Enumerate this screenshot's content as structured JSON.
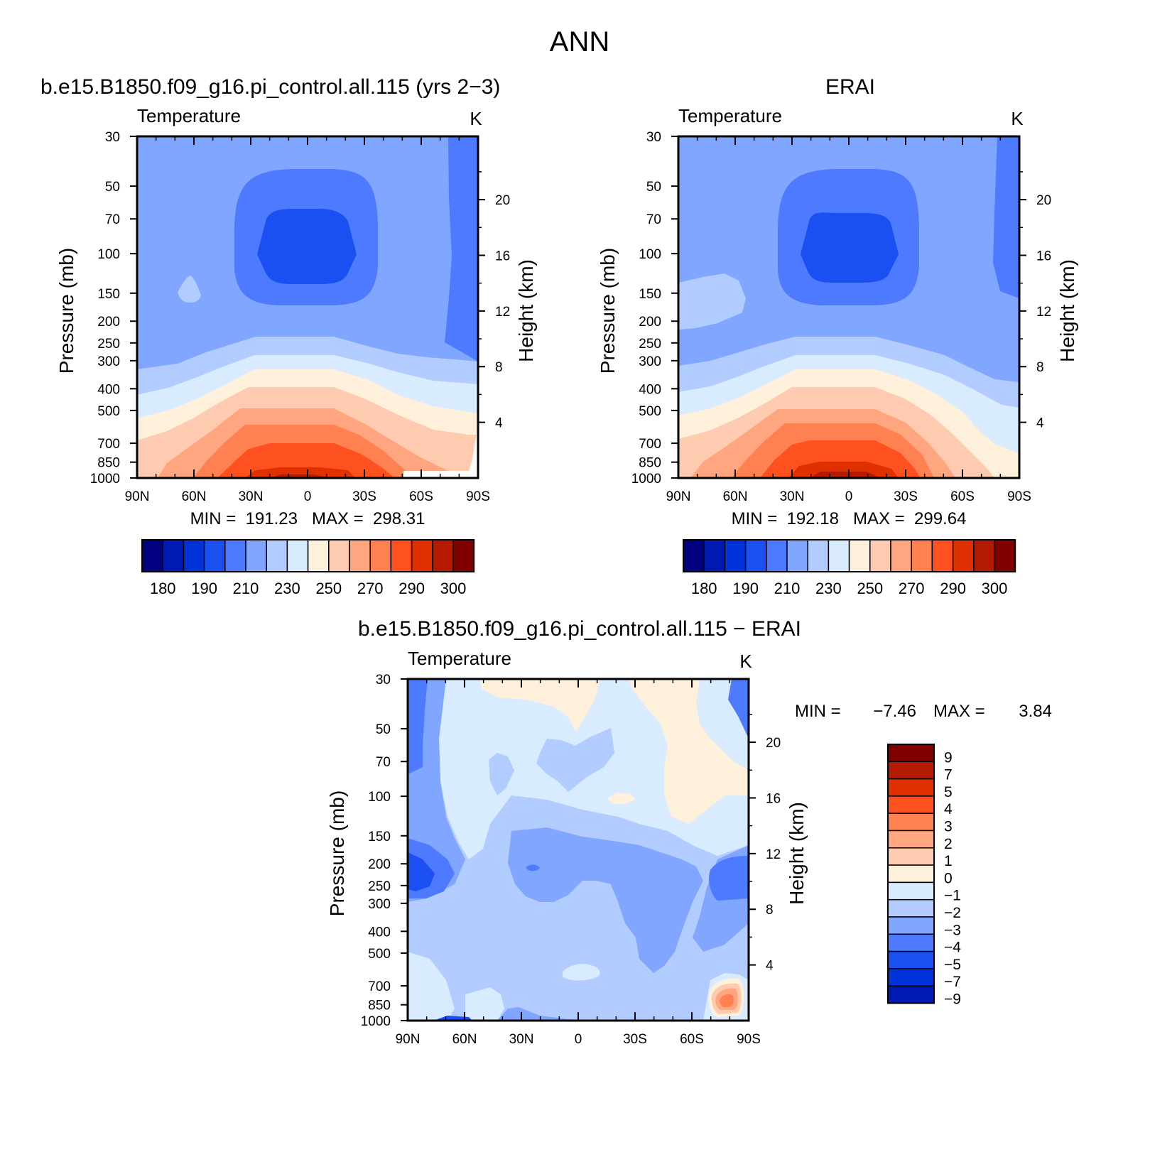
{
  "page_title": "ANN",
  "palette": {
    "abs": [
      "#000080",
      "#0019b3",
      "#0033d9",
      "#1a4ff2",
      "#4d7aff",
      "#80a6ff",
      "#b3ccff",
      "#d9ebff",
      "#fff0dc",
      "#ffcbb0",
      "#ffa680",
      "#ff8050",
      "#ff5020",
      "#e03000",
      "#b31a00",
      "#800000"
    ],
    "diff": [
      "#0019b3",
      "#0033d9",
      "#1a4ff2",
      "#4d7aff",
      "#80a6ff",
      "#b3ccff",
      "#d9ebff",
      "#fff0dc",
      "#ffcbb0",
      "#ffa680",
      "#ff8050",
      "#ff5020",
      "#e03000",
      "#b31a00",
      "#800000"
    ]
  },
  "panels": {
    "model": {
      "header": "b.e15.B1850.f09_g16.pi_control.all.115 (yrs 2−3)",
      "variable": "Temperature",
      "units": "K",
      "minmax": "MIN =  191.23   MAX =  298.31"
    },
    "obs": {
      "header": "ERAI",
      "variable": "Temperature",
      "units": "K",
      "minmax": "MIN =  192.18   MAX =  299.64"
    },
    "diff": {
      "header": "b.e15.B1850.f09_g16.pi_control.all.115 − ERAI",
      "variable": "Temperature",
      "units": "K",
      "min_label": "MIN =",
      "min_value": "−7.46",
      "max_label": "MAX =",
      "max_value": "3.84"
    }
  },
  "axes": {
    "ylabel": "Pressure (mb)",
    "y2label": "Height (km)",
    "pressure_ticks": [
      "30",
      "50",
      "70",
      "100",
      "150",
      "200",
      "250",
      "300",
      "400",
      "500",
      "700",
      "850",
      "1000"
    ],
    "height_ticks": [
      "20",
      "16",
      "12",
      "8",
      "4"
    ],
    "lat_ticks": [
      "90N",
      "60N",
      "30N",
      "0",
      "30S",
      "60S",
      "90S"
    ]
  },
  "colorbars": {
    "abs_labels": [
      "180",
      "190",
      "210",
      "230",
      "250",
      "270",
      "290",
      "300"
    ],
    "diff_labels": [
      "9",
      "7",
      "5",
      "4",
      "3",
      "2",
      "1",
      "0",
      "−1",
      "−2",
      "−3",
      "−4",
      "−5",
      "−7",
      "−9"
    ]
  },
  "chart_data": [
    {
      "type": "heatmap",
      "title": "b.e15.B1850.f09_g16.pi_control.all.115 (yrs 2−3)",
      "variable": "Temperature",
      "units": "K",
      "xlabel": "",
      "ylabel": "Pressure (mb)",
      "y2label": "Height (km)",
      "x_range": [
        -90,
        90
      ],
      "y_range_mb": [
        1000,
        30
      ],
      "y_scale": "log",
      "x_ticks": [
        "90N",
        "60N",
        "30N",
        "0",
        "30S",
        "60S",
        "90S"
      ],
      "y_ticks": [
        30,
        50,
        70,
        100,
        150,
        200,
        250,
        300,
        400,
        500,
        700,
        850,
        1000
      ],
      "contour_levels": [
        175,
        180,
        185,
        190,
        200,
        210,
        220,
        230,
        240,
        250,
        260,
        270,
        280,
        290,
        295,
        300
      ],
      "min": 191.23,
      "max": 298.31
    },
    {
      "type": "heatmap",
      "title": "ERAI",
      "variable": "Temperature",
      "units": "K",
      "xlabel": "",
      "ylabel": "Pressure (mb)",
      "y2label": "Height (km)",
      "x_range": [
        -90,
        90
      ],
      "y_range_mb": [
        1000,
        30
      ],
      "y_scale": "log",
      "x_ticks": [
        "90N",
        "60N",
        "30N",
        "0",
        "30S",
        "60S",
        "90S"
      ],
      "y_ticks": [
        30,
        50,
        70,
        100,
        150,
        200,
        250,
        300,
        400,
        500,
        700,
        850,
        1000
      ],
      "contour_levels": [
        175,
        180,
        185,
        190,
        200,
        210,
        220,
        230,
        240,
        250,
        260,
        270,
        280,
        290,
        295,
        300
      ],
      "min": 192.18,
      "max": 299.64
    },
    {
      "type": "heatmap",
      "title": "b.e15.B1850.f09_g16.pi_control.all.115 − ERAI",
      "variable": "Temperature",
      "units": "K",
      "xlabel": "",
      "ylabel": "Pressure (mb)",
      "y2label": "Height (km)",
      "x_range": [
        -90,
        90
      ],
      "y_range_mb": [
        1000,
        30
      ],
      "y_scale": "log",
      "x_ticks": [
        "90N",
        "60N",
        "30N",
        "0",
        "30S",
        "60S",
        "90S"
      ],
      "y_ticks": [
        30,
        50,
        70,
        100,
        150,
        200,
        250,
        300,
        400,
        500,
        700,
        850,
        1000
      ],
      "contour_levels": [
        -9,
        -7,
        -5,
        -4,
        -3,
        -2,
        -1,
        0,
        1,
        2,
        3,
        4,
        5,
        7,
        9
      ],
      "min": -7.46,
      "max": 3.84
    }
  ]
}
